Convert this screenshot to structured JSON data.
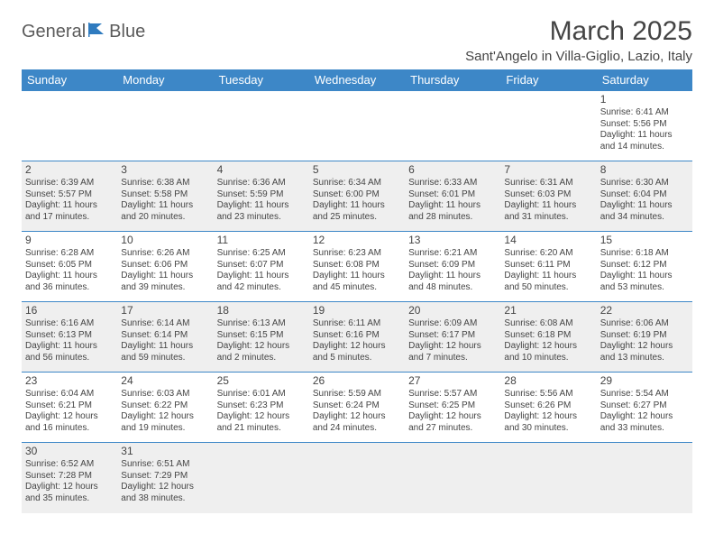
{
  "colors": {
    "header_bg": "#3d87c7",
    "header_text": "#ffffff",
    "cell_border": "#3d87c7",
    "shaded_row_bg": "#efefef",
    "body_text": "#444444",
    "logo_gray": "#5b5b5b",
    "logo_blue": "#2f7bbf",
    "page_bg": "#ffffff"
  },
  "logo": {
    "word1": "General",
    "word2": "Blue"
  },
  "title": "March 2025",
  "location": "Sant'Angelo in Villa-Giglio, Lazio, Italy",
  "day_headers": [
    "Sunday",
    "Monday",
    "Tuesday",
    "Wednesday",
    "Thursday",
    "Friday",
    "Saturday"
  ],
  "weeks": [
    {
      "shaded": false,
      "cells": [
        {
          "empty": true
        },
        {
          "empty": true
        },
        {
          "empty": true
        },
        {
          "empty": true
        },
        {
          "empty": true
        },
        {
          "empty": true
        },
        {
          "day": "1",
          "sunrise": "Sunrise: 6:41 AM",
          "sunset": "Sunset: 5:56 PM",
          "daylight": "Daylight: 11 hours and 14 minutes."
        }
      ]
    },
    {
      "shaded": true,
      "cells": [
        {
          "day": "2",
          "sunrise": "Sunrise: 6:39 AM",
          "sunset": "Sunset: 5:57 PM",
          "daylight": "Daylight: 11 hours and 17 minutes."
        },
        {
          "day": "3",
          "sunrise": "Sunrise: 6:38 AM",
          "sunset": "Sunset: 5:58 PM",
          "daylight": "Daylight: 11 hours and 20 minutes."
        },
        {
          "day": "4",
          "sunrise": "Sunrise: 6:36 AM",
          "sunset": "Sunset: 5:59 PM",
          "daylight": "Daylight: 11 hours and 23 minutes."
        },
        {
          "day": "5",
          "sunrise": "Sunrise: 6:34 AM",
          "sunset": "Sunset: 6:00 PM",
          "daylight": "Daylight: 11 hours and 25 minutes."
        },
        {
          "day": "6",
          "sunrise": "Sunrise: 6:33 AM",
          "sunset": "Sunset: 6:01 PM",
          "daylight": "Daylight: 11 hours and 28 minutes."
        },
        {
          "day": "7",
          "sunrise": "Sunrise: 6:31 AM",
          "sunset": "Sunset: 6:03 PM",
          "daylight": "Daylight: 11 hours and 31 minutes."
        },
        {
          "day": "8",
          "sunrise": "Sunrise: 6:30 AM",
          "sunset": "Sunset: 6:04 PM",
          "daylight": "Daylight: 11 hours and 34 minutes."
        }
      ]
    },
    {
      "shaded": false,
      "cells": [
        {
          "day": "9",
          "sunrise": "Sunrise: 6:28 AM",
          "sunset": "Sunset: 6:05 PM",
          "daylight": "Daylight: 11 hours and 36 minutes."
        },
        {
          "day": "10",
          "sunrise": "Sunrise: 6:26 AM",
          "sunset": "Sunset: 6:06 PM",
          "daylight": "Daylight: 11 hours and 39 minutes."
        },
        {
          "day": "11",
          "sunrise": "Sunrise: 6:25 AM",
          "sunset": "Sunset: 6:07 PM",
          "daylight": "Daylight: 11 hours and 42 minutes."
        },
        {
          "day": "12",
          "sunrise": "Sunrise: 6:23 AM",
          "sunset": "Sunset: 6:08 PM",
          "daylight": "Daylight: 11 hours and 45 minutes."
        },
        {
          "day": "13",
          "sunrise": "Sunrise: 6:21 AM",
          "sunset": "Sunset: 6:09 PM",
          "daylight": "Daylight: 11 hours and 48 minutes."
        },
        {
          "day": "14",
          "sunrise": "Sunrise: 6:20 AM",
          "sunset": "Sunset: 6:11 PM",
          "daylight": "Daylight: 11 hours and 50 minutes."
        },
        {
          "day": "15",
          "sunrise": "Sunrise: 6:18 AM",
          "sunset": "Sunset: 6:12 PM",
          "daylight": "Daylight: 11 hours and 53 minutes."
        }
      ]
    },
    {
      "shaded": true,
      "cells": [
        {
          "day": "16",
          "sunrise": "Sunrise: 6:16 AM",
          "sunset": "Sunset: 6:13 PM",
          "daylight": "Daylight: 11 hours and 56 minutes."
        },
        {
          "day": "17",
          "sunrise": "Sunrise: 6:14 AM",
          "sunset": "Sunset: 6:14 PM",
          "daylight": "Daylight: 11 hours and 59 minutes."
        },
        {
          "day": "18",
          "sunrise": "Sunrise: 6:13 AM",
          "sunset": "Sunset: 6:15 PM",
          "daylight": "Daylight: 12 hours and 2 minutes."
        },
        {
          "day": "19",
          "sunrise": "Sunrise: 6:11 AM",
          "sunset": "Sunset: 6:16 PM",
          "daylight": "Daylight: 12 hours and 5 minutes."
        },
        {
          "day": "20",
          "sunrise": "Sunrise: 6:09 AM",
          "sunset": "Sunset: 6:17 PM",
          "daylight": "Daylight: 12 hours and 7 minutes."
        },
        {
          "day": "21",
          "sunrise": "Sunrise: 6:08 AM",
          "sunset": "Sunset: 6:18 PM",
          "daylight": "Daylight: 12 hours and 10 minutes."
        },
        {
          "day": "22",
          "sunrise": "Sunrise: 6:06 AM",
          "sunset": "Sunset: 6:19 PM",
          "daylight": "Daylight: 12 hours and 13 minutes."
        }
      ]
    },
    {
      "shaded": false,
      "cells": [
        {
          "day": "23",
          "sunrise": "Sunrise: 6:04 AM",
          "sunset": "Sunset: 6:21 PM",
          "daylight": "Daylight: 12 hours and 16 minutes."
        },
        {
          "day": "24",
          "sunrise": "Sunrise: 6:03 AM",
          "sunset": "Sunset: 6:22 PM",
          "daylight": "Daylight: 12 hours and 19 minutes."
        },
        {
          "day": "25",
          "sunrise": "Sunrise: 6:01 AM",
          "sunset": "Sunset: 6:23 PM",
          "daylight": "Daylight: 12 hours and 21 minutes."
        },
        {
          "day": "26",
          "sunrise": "Sunrise: 5:59 AM",
          "sunset": "Sunset: 6:24 PM",
          "daylight": "Daylight: 12 hours and 24 minutes."
        },
        {
          "day": "27",
          "sunrise": "Sunrise: 5:57 AM",
          "sunset": "Sunset: 6:25 PM",
          "daylight": "Daylight: 12 hours and 27 minutes."
        },
        {
          "day": "28",
          "sunrise": "Sunrise: 5:56 AM",
          "sunset": "Sunset: 6:26 PM",
          "daylight": "Daylight: 12 hours and 30 minutes."
        },
        {
          "day": "29",
          "sunrise": "Sunrise: 5:54 AM",
          "sunset": "Sunset: 6:27 PM",
          "daylight": "Daylight: 12 hours and 33 minutes."
        }
      ]
    },
    {
      "shaded": true,
      "cells": [
        {
          "day": "30",
          "sunrise": "Sunrise: 6:52 AM",
          "sunset": "Sunset: 7:28 PM",
          "daylight": "Daylight: 12 hours and 35 minutes."
        },
        {
          "day": "31",
          "sunrise": "Sunrise: 6:51 AM",
          "sunset": "Sunset: 7:29 PM",
          "daylight": "Daylight: 12 hours and 38 minutes."
        },
        {
          "empty": true
        },
        {
          "empty": true
        },
        {
          "empty": true
        },
        {
          "empty": true
        },
        {
          "empty": true
        }
      ]
    }
  ]
}
